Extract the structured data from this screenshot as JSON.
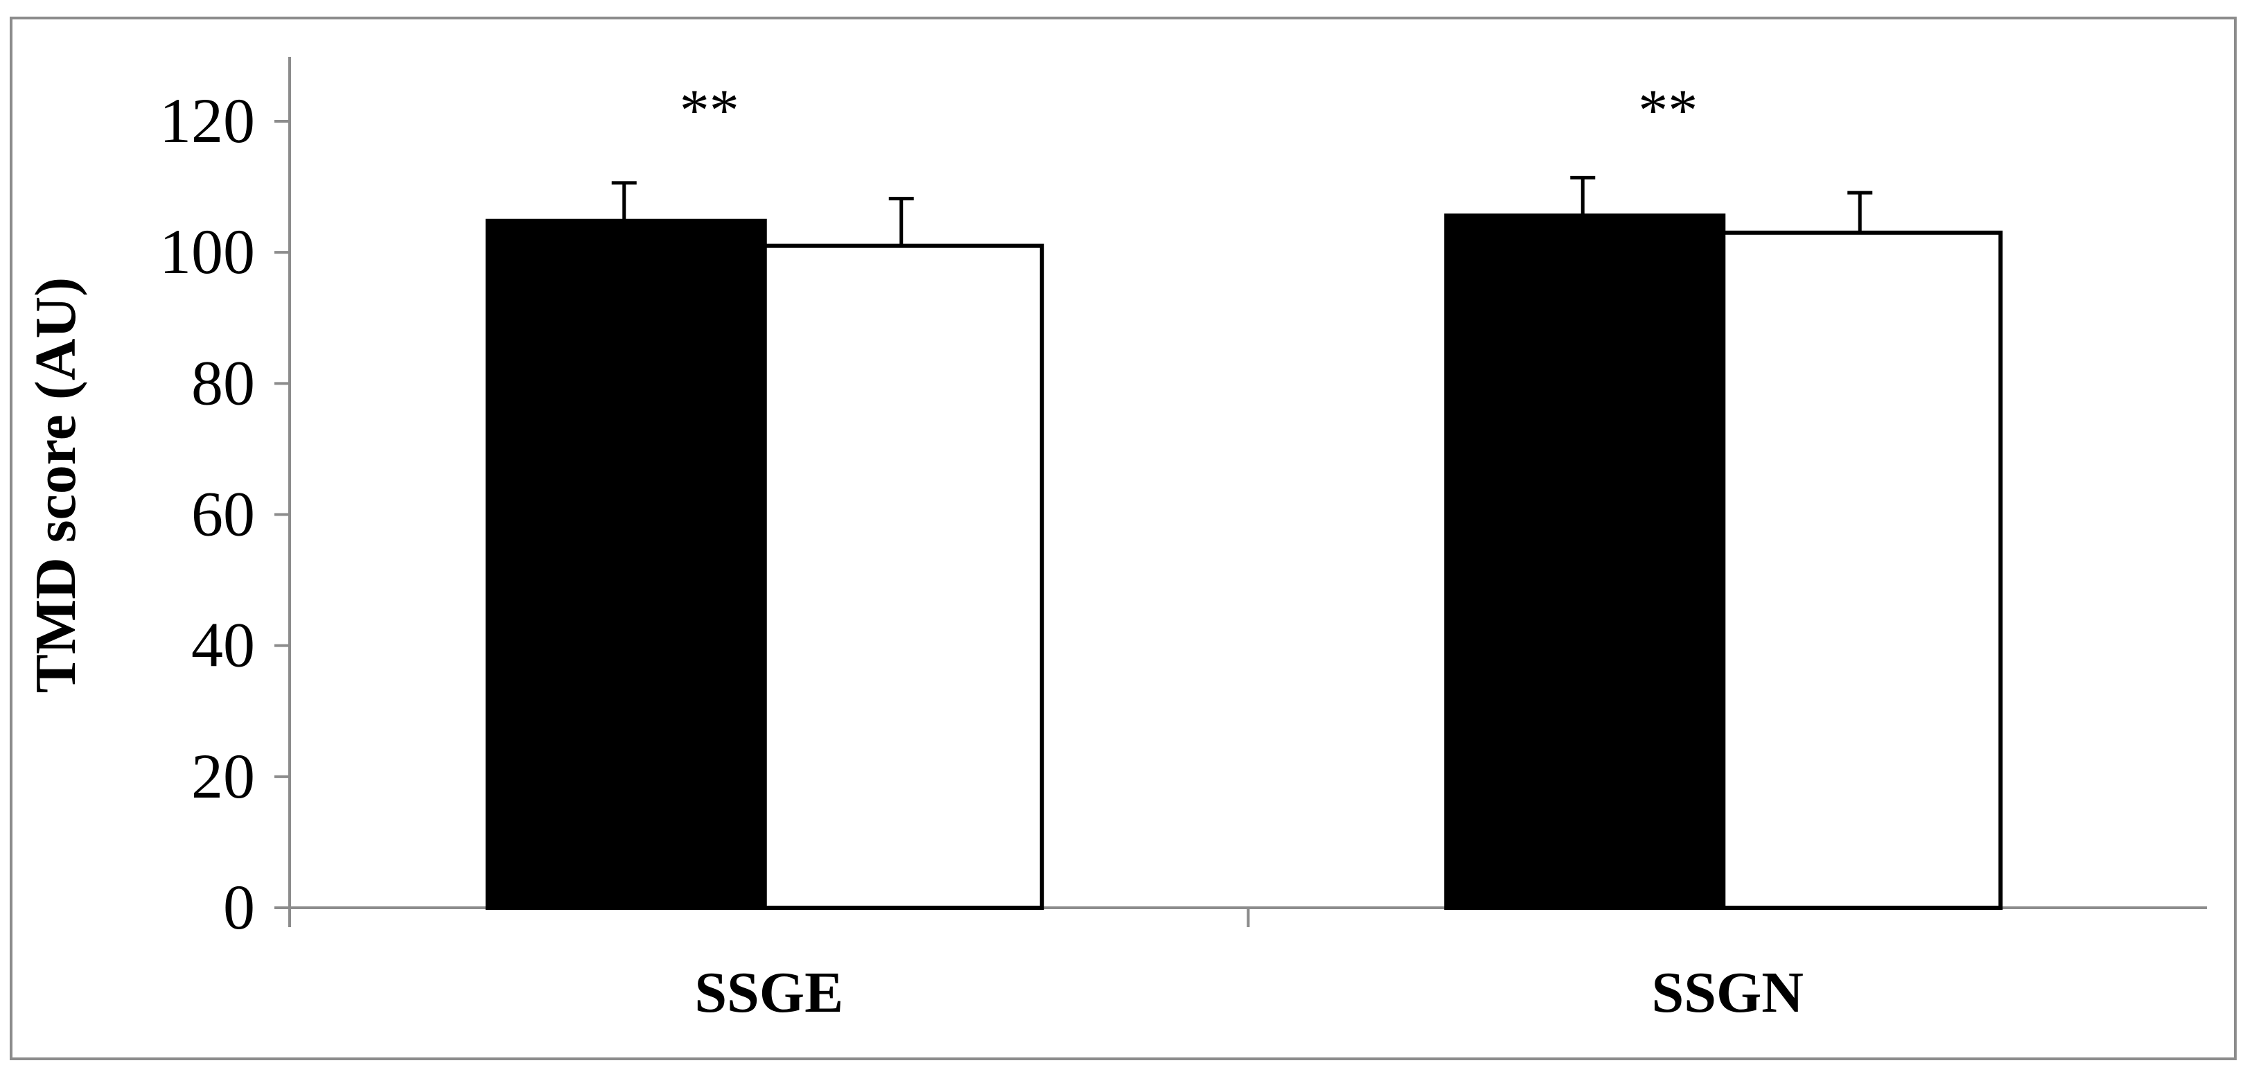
{
  "chart_data": {
    "type": "bar",
    "title": "",
    "xlabel": "",
    "ylabel": "TMD score (AU)",
    "categories": [
      "SSGE",
      "SSGN"
    ],
    "ylim": [
      0,
      120
    ],
    "yticks": [
      0,
      20,
      40,
      60,
      80,
      100,
      120
    ],
    "grid": false,
    "legend": "none",
    "series": [
      {
        "values": [
          104.8,
          105.6
        ],
        "errors": [
          5.8,
          5.8
        ],
        "color": "#000000"
      },
      {
        "values": [
          101.0,
          103.0
        ],
        "errors": [
          7.2,
          6.1
        ],
        "color": "#ffffff"
      }
    ],
    "annotations": [
      {
        "category": "SSGE",
        "text": "**"
      },
      {
        "category": "SSGN",
        "text": "**"
      }
    ]
  },
  "colors": {
    "axis": "#8c8c8c",
    "border": "#8c8c8c",
    "bar_outline": "#000000"
  }
}
